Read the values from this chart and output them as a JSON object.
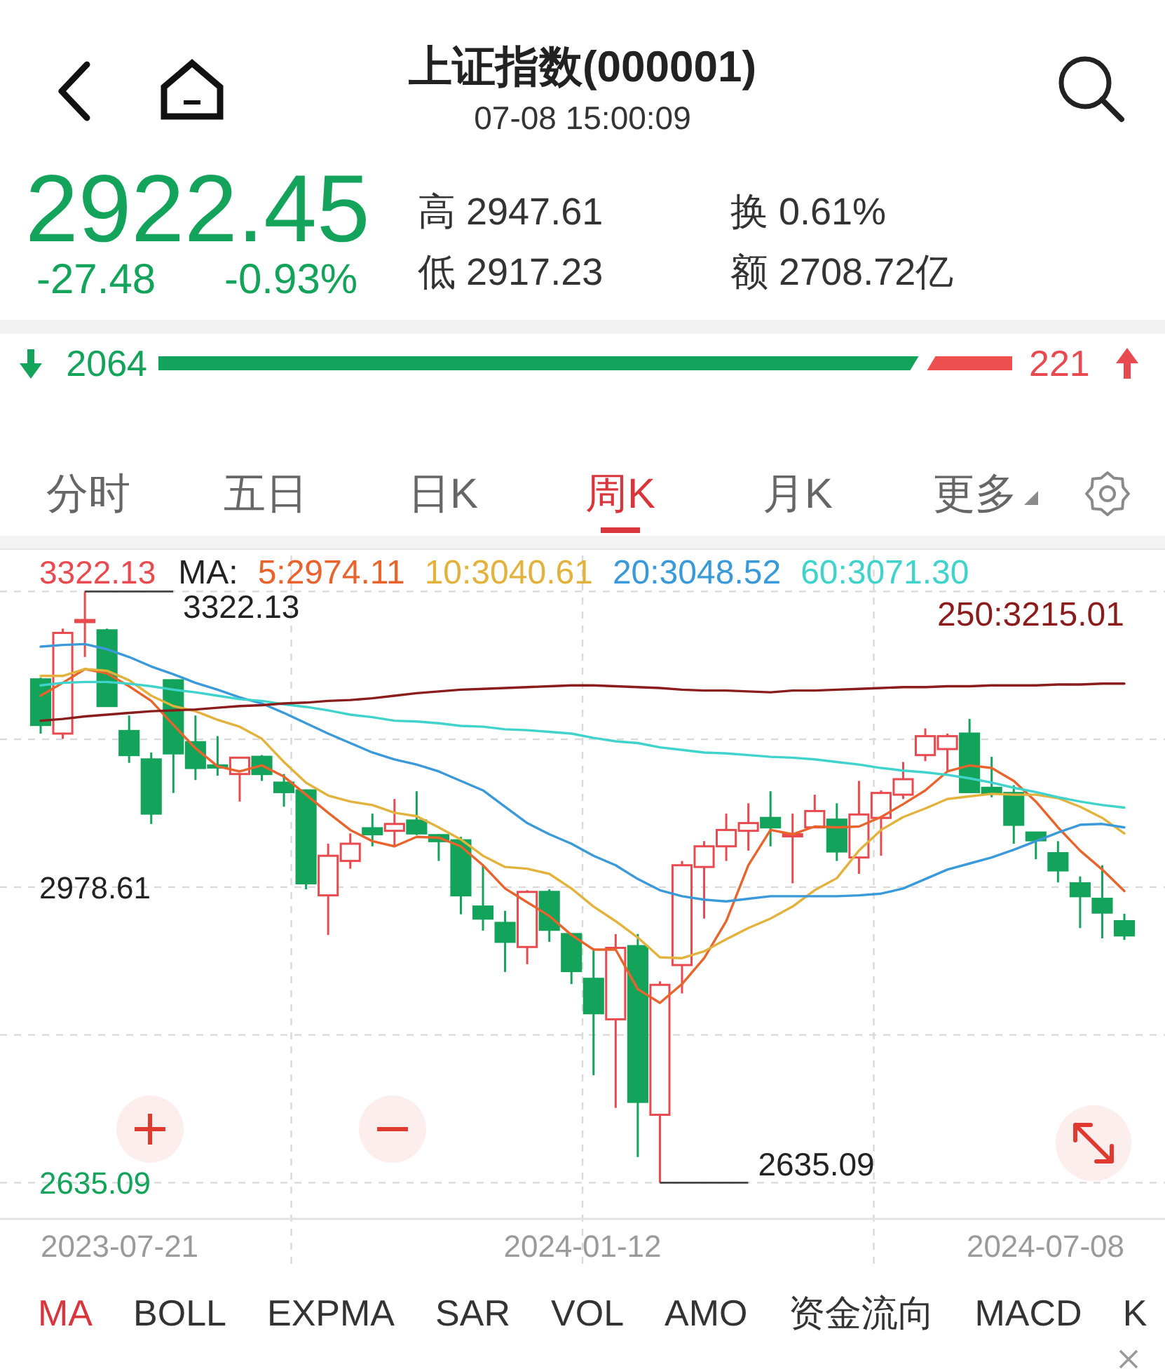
{
  "chart_data": [
    {
      "type": "other",
      "title": "上证指数(000001)",
      "subtitle": "07-08 15:00:09",
      "annotations": [
        "2922.45",
        "-27.48",
        "-0.93%",
        "高 2947.61",
        "低 2917.23",
        "换 0.61%",
        "额 2708.72亿"
      ]
    },
    {
      "type": "other",
      "annotations": [
        "2064",
        "221"
      ]
    },
    {
      "type": "other",
      "categories": [
        "分时",
        "五日",
        "日K",
        "周K",
        "月K",
        "更多"
      ],
      "colors": [
        "#666666",
        "#666666",
        "#666666",
        "#d8363c",
        "#666666",
        "#666666"
      ]
    },
    {
      "type": "candlestick",
      "categories": [
        null,
        null,
        null,
        null,
        null,
        null,
        null,
        null,
        null,
        null,
        null,
        null,
        null,
        null,
        null,
        null,
        null,
        null,
        null,
        null,
        null,
        null,
        null,
        null,
        null,
        null,
        null,
        null,
        null,
        null,
        null,
        null,
        null,
        null,
        null,
        null,
        null,
        null,
        null,
        null,
        null,
        null,
        null,
        null,
        null,
        null,
        null,
        null,
        null,
        null
      ],
      "ohlc": [
        [
          3220,
          3222,
          3157,
          3167
        ],
        [
          3157,
          3279,
          3151,
          3274
        ],
        [
          3287,
          3322.13,
          3246,
          3289
        ],
        [
          3277,
          3279,
          3188,
          3189
        ],
        [
          3160,
          3178,
          3123,
          3132
        ],
        [
          3127,
          3135,
          3052,
          3064
        ],
        [
          3219,
          3220,
          3088,
          3134
        ],
        [
          3147,
          3178,
          3103,
          3117
        ],
        [
          3120,
          3154,
          3108,
          3119
        ],
        [
          3110,
          3130,
          3078,
          3129
        ],
        [
          3130,
          3132,
          3102,
          3110
        ],
        [
          3100,
          3110,
          3072,
          3089
        ],
        [
          3091,
          3092,
          2976,
          2983
        ],
        [
          2969,
          3029,
          2923,
          3015
        ],
        [
          3009,
          3041,
          3000,
          3029
        ],
        [
          3047,
          3064,
          3026,
          3040
        ],
        [
          3044,
          3081,
          3026,
          3052
        ],
        [
          3056,
          3090,
          3039,
          3041
        ],
        [
          3039,
          3040,
          3009,
          3032
        ],
        [
          3033,
          3037,
          2947,
          2969
        ],
        [
          2956,
          3004,
          2928,
          2942
        ],
        [
          2937,
          2951,
          2880,
          2915
        ],
        [
          2909,
          2975,
          2889,
          2973
        ],
        [
          2973,
          2976,
          2915,
          2929
        ],
        [
          2924,
          2925,
          2866,
          2881
        ],
        [
          2872,
          2907,
          2760,
          2832
        ],
        [
          2825,
          2924,
          2722,
          2908
        ],
        [
          2910,
          2924,
          2665,
          2729
        ],
        [
          2714,
          2869,
          2635.09,
          2865
        ],
        [
          2888,
          3009,
          2855,
          3004
        ],
        [
          3002,
          3032,
          2942,
          3026
        ],
        [
          3026,
          3064,
          3009,
          3045
        ],
        [
          3044,
          3076,
          3021,
          3053
        ],
        [
          3059,
          3090,
          3026,
          3048
        ],
        [
          3039,
          3064,
          2983,
          3040
        ],
        [
          3048,
          3086,
          3047,
          3067
        ],
        [
          3057,
          3076,
          3009,
          3020
        ],
        [
          3013,
          3102,
          2994,
          3063
        ],
        [
          3059,
          3091,
          3015,
          3088
        ],
        [
          3086,
          3124,
          3081,
          3104
        ],
        [
          3132,
          3163,
          3125,
          3154
        ],
        [
          3139,
          3157,
          3113,
          3154
        ],
        [
          3157,
          3174,
          3088,
          3089
        ],
        [
          3094,
          3130,
          3083,
          3088
        ],
        [
          3088,
          3097,
          3029,
          3051
        ],
        [
          3042,
          3043,
          3011,
          3033
        ],
        [
          3018,
          3032,
          2984,
          2998
        ],
        [
          2983,
          2991,
          2931,
          2968
        ],
        [
          2965,
          3004,
          2919,
          2949
        ],
        [
          2939,
          2947.61,
          2917.23,
          2922.45
        ]
      ],
      "colors": [
        "#14a35b",
        "#e84a4f",
        "#e84a4f",
        "#14a35b",
        "#14a35b",
        "#14a35b",
        "#14a35b",
        "#14a35b",
        "#14a35b",
        "#e84a4f",
        "#14a35b",
        "#14a35b",
        "#14a35b",
        "#e84a4f",
        "#e84a4f",
        "#14a35b",
        "#e84a4f",
        "#14a35b",
        "#14a35b",
        "#14a35b",
        "#14a35b",
        "#14a35b",
        "#e84a4f",
        "#14a35b",
        "#14a35b",
        "#14a35b",
        "#e84a4f",
        "#14a35b",
        "#e84a4f",
        "#e84a4f",
        "#e84a4f",
        "#e84a4f",
        "#e84a4f",
        "#14a35b",
        "#e84a4f",
        "#e84a4f",
        "#14a35b",
        "#e84a4f",
        "#e84a4f",
        "#e84a4f",
        "#e84a4f",
        "#e84a4f",
        "#14a35b",
        "#14a35b",
        "#14a35b",
        "#14a35b",
        "#14a35b",
        "#14a35b",
        "#14a35b",
        "#14a35b"
      ],
      "series": [
        {
          "type": "line",
          "name": "5:2974.11",
          "color": "#e8642c",
          "values": [
            3201,
            3216,
            3232,
            3227,
            3212,
            3195,
            3167,
            3140,
            3119,
            3113,
            3120,
            3107,
            3086,
            3065,
            3045,
            3032,
            3026,
            3037,
            3036,
            3026,
            3004,
            2977,
            2961,
            2945,
            2923,
            2906,
            2906,
            2860,
            2844,
            2866,
            2896,
            2939,
            3004,
            3045,
            3040,
            3049,
            3048,
            3049,
            3060,
            3075,
            3091,
            3113,
            3120,
            3117,
            3102,
            3078,
            3048,
            3021,
            2999,
            2974
          ]
        },
        {
          "type": "line",
          "name": "10:3040.61",
          "color": "#e3b23c",
          "values": [
            3224,
            3224,
            3232,
            3230,
            3219,
            3201,
            3189,
            3183,
            3173,
            3165,
            3151,
            3124,
            3100,
            3085,
            3078,
            3074,
            3065,
            3061,
            3048,
            3034,
            3015,
            3002,
            3000,
            2994,
            2977,
            2956,
            2939,
            2920,
            2897,
            2896,
            2904,
            2918,
            2931,
            2942,
            2956,
            2975,
            2989,
            3021,
            3045,
            3060,
            3070,
            3081,
            3084,
            3087,
            3086,
            3086,
            3082,
            3072,
            3059,
            3041
          ]
        },
        {
          "type": "line",
          "name": "20:3048.52",
          "color": "#3a9ad9",
          "values": [
            3258,
            3260,
            3261,
            3255,
            3246,
            3235,
            3226,
            3216,
            3208,
            3199,
            3192,
            3181,
            3169,
            3157,
            3146,
            3135,
            3127,
            3121,
            3113,
            3102,
            3091,
            3072,
            3053,
            3040,
            3029,
            3015,
            3004,
            2988,
            2975,
            2968,
            2964,
            2962,
            2965,
            2968,
            2968,
            2968,
            2968,
            2969,
            2971,
            2977,
            2988,
            2999,
            3006,
            3013,
            3022,
            3032,
            3042,
            3051,
            3052,
            3048
          ]
        },
        {
          "type": "line",
          "name": "60:3071.30",
          "color": "#3fd3cc",
          "values": [
            3213,
            3216,
            3217,
            3217,
            3215,
            3212,
            3208,
            3205,
            3201,
            3197,
            3195,
            3191,
            3188,
            3184,
            3179,
            3176,
            3172,
            3171,
            3169,
            3166,
            3165,
            3162,
            3161,
            3159,
            3157,
            3152,
            3148,
            3146,
            3141,
            3138,
            3135,
            3134,
            3132,
            3130,
            3129,
            3127,
            3124,
            3121,
            3117,
            3114,
            3112,
            3109,
            3105,
            3100,
            3094,
            3089,
            3083,
            3078,
            3074,
            3071
          ]
        },
        {
          "type": "line",
          "name": "250:3215.01",
          "color": "#8b1c1c",
          "values": [
            3172,
            3174,
            3177,
            3179,
            3181,
            3183,
            3184,
            3185,
            3187,
            3189,
            3190,
            3192,
            3193,
            3195,
            3196,
            3198,
            3201,
            3204,
            3206,
            3208,
            3209,
            3210,
            3211,
            3212,
            3213,
            3213,
            3212,
            3211,
            3210,
            3208,
            3207,
            3207,
            3206,
            3205,
            3207,
            3207,
            3208,
            3209,
            3210,
            3211,
            3211,
            3212,
            3212,
            3213,
            3213,
            3213,
            3214,
            3214,
            3215,
            3215
          ]
        }
      ],
      "legend": "top",
      "legend_title": "MA:",
      "ylim": [
        2593,
        3364
      ],
      "yticks": [
        {
          "value": 3322.13,
          "label": null
        },
        {
          "value": 3150.37,
          "label": null
        },
        2978.61,
        {
          "value": 2806.85,
          "label": null
        },
        2635.09
      ],
      "grid": true,
      "annotations": [
        "3322.13",
        "3322.13",
        "2635.09",
        "2023-07-21",
        "2024-01-12",
        "2024-07-08"
      ]
    },
    {
      "type": "other",
      "categories": [
        "MA",
        "BOLL",
        "EXPMA",
        "SAR",
        "VOL",
        "AMO",
        "资金流向",
        "MACD",
        "K"
      ],
      "colors": [
        "#d8363c",
        "#333333",
        "#333333",
        "#333333",
        "#333333",
        "#333333",
        "#333333",
        "#333333",
        "#333333"
      ]
    }
  ]
}
